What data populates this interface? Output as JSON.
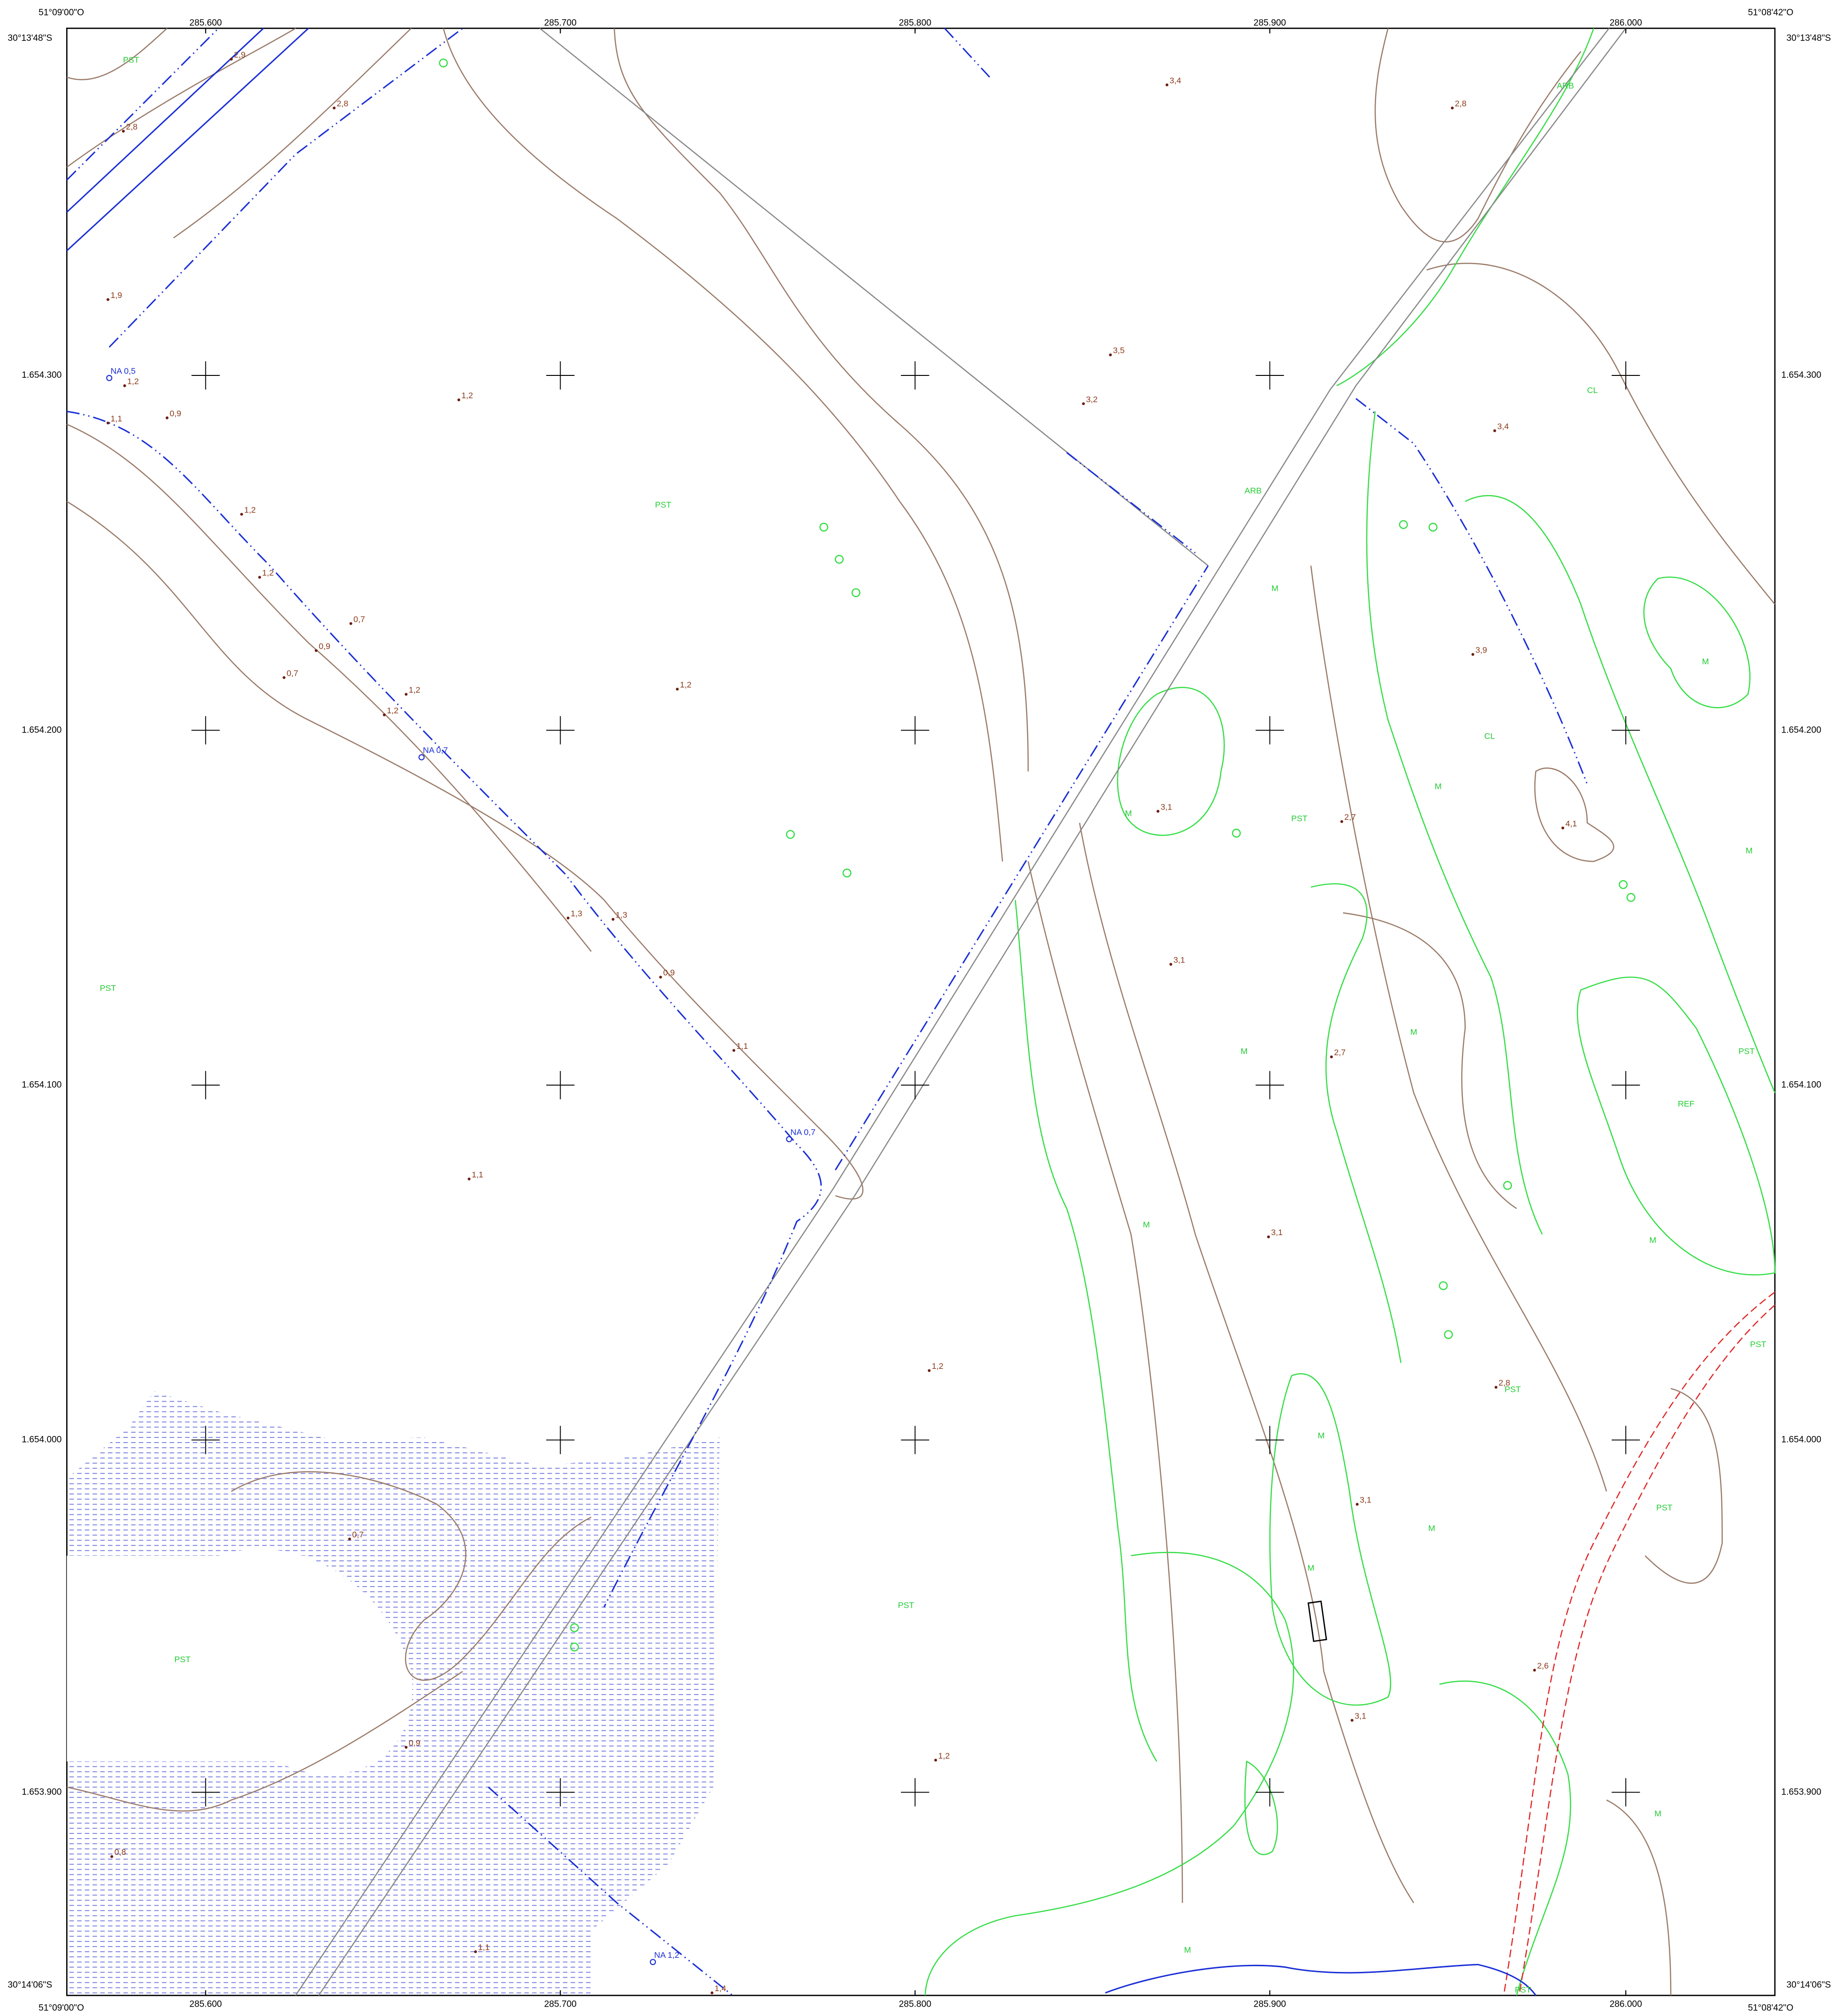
{
  "frame": {
    "lon_west": "51°09'00\"O",
    "lon_east": "51°08'42\"O",
    "lat_north": "30°13'48\"S",
    "lat_south": "30°14'06\"S"
  },
  "eastings": [
    "285.600",
    "285.700",
    "285.800",
    "285.900",
    "286.000"
  ],
  "northings": [
    "1.654.300",
    "1.654.200",
    "1.654.100",
    "1.654.000",
    "1.653.900"
  ],
  "spot_heights": [
    "2,9",
    "2,8",
    "2,8",
    "3,4",
    "2,8",
    "1,9",
    "1,2",
    "1,1",
    "0,9",
    "1,2",
    "3,5",
    "3,2",
    "3,4",
    "1,2",
    "1,2",
    "0,7",
    "0,9",
    "0,7",
    "1,2",
    "1,2",
    "3,9",
    "1,2",
    "3,1",
    "2,7",
    "4,1",
    "1,3",
    "1,3",
    "3,1",
    "0,9",
    "1,1",
    "2,7",
    "1,1",
    "3,1",
    "1,2",
    "2,8",
    "3,1",
    "0,7",
    "2,6",
    "3,1",
    "0,9",
    "1,2",
    "0,8",
    "1,1",
    "1,4"
  ],
  "water_levels": [
    "NA 0,5",
    "NA 0,7",
    "NA 0,7",
    "NA 1,2"
  ],
  "land_use": [
    "PST",
    "ARB",
    "CL",
    "PST",
    "ARB",
    "M",
    "M",
    "CL",
    "M",
    "M",
    "PST",
    "M",
    "PST",
    "M",
    "M",
    "PST",
    "REF",
    "M",
    "M",
    "PST",
    "PST",
    "M",
    "PST",
    "M",
    "M",
    "PST",
    "PST",
    "M",
    "M",
    "PST"
  ]
}
